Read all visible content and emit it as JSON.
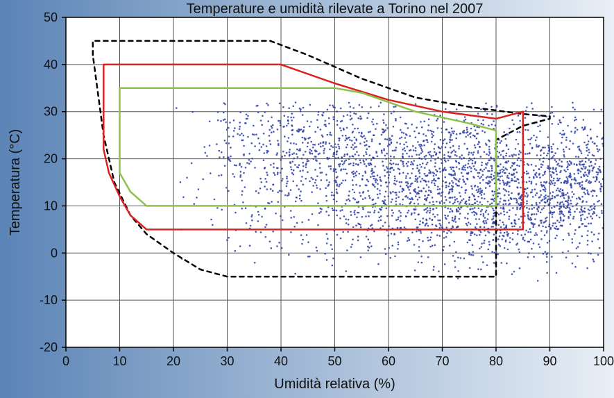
{
  "chart": {
    "type": "scatter-with-envelopes",
    "title": "Temperature e umidità rilevate a Torino nel 2007",
    "xlabel": "Umidità relativa (%)",
    "ylabel": "Temperatura (°C)",
    "xlim": [
      0,
      100
    ],
    "ylim": [
      -20,
      50
    ],
    "xtick_step": 10,
    "ytick_step": 10,
    "title_fontsize": 20,
    "label_fontsize": 20,
    "tick_fontsize": 18,
    "background_gradient": {
      "from": "#5b84b6",
      "to": "#e9eff6"
    },
    "plot_background": "#ffffff",
    "grid_color": "#555555",
    "grid_width": 1,
    "axis_color": "#000000",
    "axis_width": 1.5,
    "scatter": {
      "color": "#2e3fa6",
      "opacity": 0.85,
      "radius": 1.3,
      "cloud_n": 3200,
      "cloud_seed": 1234567,
      "cloud_centers": [
        {
          "x": 75,
          "y": 15,
          "sx": 18,
          "sy": 7,
          "w": 45
        },
        {
          "x": 55,
          "y": 20,
          "sx": 20,
          "sy": 7,
          "w": 25
        },
        {
          "x": 88,
          "y": 11,
          "sx": 10,
          "sy": 6,
          "w": 18
        },
        {
          "x": 40,
          "y": 25,
          "sx": 10,
          "sy": 6,
          "w": 8
        },
        {
          "x": 65,
          "y": 5,
          "sx": 22,
          "sy": 5,
          "w": 10
        },
        {
          "x": 95,
          "y": 18,
          "sx": 4,
          "sy": 6,
          "w": 6
        }
      ],
      "cloud_bounds": {
        "xmin": 20,
        "xmax": 101,
        "ymin": -6,
        "ymax": 32
      }
    },
    "envelopes": [
      {
        "name": "outer-dashed",
        "color": "#000000",
        "width": 2.5,
        "dash": "6,6",
        "points": [
          [
            5,
            42
          ],
          [
            5,
            45
          ],
          [
            10,
            45
          ],
          [
            20,
            45
          ],
          [
            30,
            45
          ],
          [
            38,
            45
          ],
          [
            45,
            42
          ],
          [
            55,
            37
          ],
          [
            65,
            33
          ],
          [
            75,
            31
          ],
          [
            85,
            29.5
          ],
          [
            90,
            29
          ],
          [
            90,
            28.5
          ],
          [
            85,
            27
          ],
          [
            80,
            24
          ],
          [
            80,
            -5
          ],
          [
            70,
            -5
          ],
          [
            60,
            -5
          ],
          [
            50,
            -5
          ],
          [
            40,
            -5
          ],
          [
            30,
            -5
          ],
          [
            25,
            -3.5
          ],
          [
            20,
            0
          ],
          [
            15,
            4
          ],
          [
            12,
            8
          ],
          [
            9,
            15
          ],
          [
            7,
            25
          ],
          [
            5,
            42
          ]
        ]
      },
      {
        "name": "red-envelope",
        "color": "#d9221f",
        "width": 2.5,
        "dash": null,
        "points": [
          [
            7,
            22
          ],
          [
            7,
            40
          ],
          [
            20,
            40
          ],
          [
            30,
            40
          ],
          [
            40,
            40
          ],
          [
            50,
            36
          ],
          [
            60,
            32.5
          ],
          [
            70,
            30
          ],
          [
            80,
            28.5
          ],
          [
            85,
            30
          ],
          [
            85,
            5
          ],
          [
            70,
            5
          ],
          [
            55,
            5
          ],
          [
            40,
            5
          ],
          [
            25,
            5
          ],
          [
            15,
            5
          ],
          [
            12,
            8
          ],
          [
            10,
            12
          ],
          [
            8,
            17
          ],
          [
            7,
            22
          ]
        ]
      },
      {
        "name": "green-envelope",
        "color": "#8dc24a",
        "width": 2.5,
        "dash": null,
        "points": [
          [
            10,
            17
          ],
          [
            10,
            35
          ],
          [
            20,
            35
          ],
          [
            30,
            35
          ],
          [
            40,
            35
          ],
          [
            50,
            35
          ],
          [
            55,
            34
          ],
          [
            65,
            30
          ],
          [
            75,
            27.5
          ],
          [
            80,
            26
          ],
          [
            80,
            10
          ],
          [
            65,
            10
          ],
          [
            50,
            10
          ],
          [
            35,
            10
          ],
          [
            20,
            10
          ],
          [
            15,
            10
          ],
          [
            12,
            13
          ],
          [
            10,
            17
          ]
        ]
      }
    ]
  }
}
